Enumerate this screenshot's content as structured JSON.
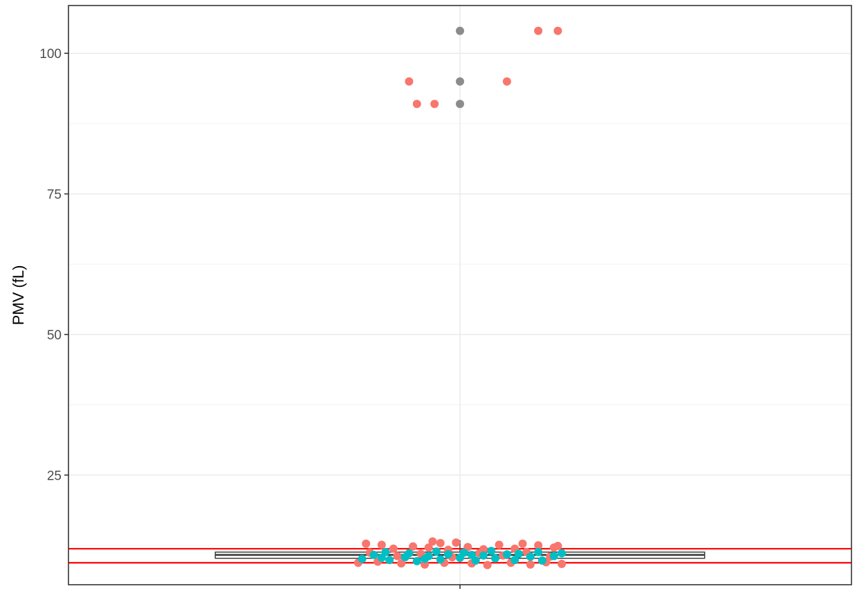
{
  "chart_data": {
    "type": "scatter",
    "title": "",
    "xlabel": "",
    "ylabel": "PMV (fL)",
    "ylim": [
      5.5,
      108.5
    ],
    "y_ticks": [
      25,
      50,
      75,
      100
    ],
    "y_tick_labels": [
      "25",
      "50",
      "75",
      "100"
    ],
    "grid": true,
    "legend": "none",
    "reference_lines": [
      {
        "y": 9.4,
        "color": "#ff0000"
      },
      {
        "y": 11.9,
        "color": "#ff0000"
      }
    ],
    "boxplot": {
      "min": 9.4,
      "q1": 10.2,
      "median": 10.8,
      "q3": 11.3,
      "max": 13.4,
      "outliers": [
        91,
        95,
        104
      ]
    },
    "series": [
      {
        "color": "#f8766d",
        "points": [
          {
            "x": -0.13,
            "y": 95
          },
          {
            "x": -0.11,
            "y": 91
          },
          {
            "x": -0.065,
            "y": 91
          },
          {
            "x": 0.12,
            "y": 95
          },
          {
            "x": 0.2,
            "y": 104
          },
          {
            "x": 0.25,
            "y": 104
          },
          {
            "x": -0.24,
            "y": 12.8
          },
          {
            "x": -0.2,
            "y": 12.6
          },
          {
            "x": -0.17,
            "y": 11.9
          },
          {
            "x": -0.12,
            "y": 12.3
          },
          {
            "x": -0.08,
            "y": 12.1
          },
          {
            "x": -0.05,
            "y": 12.9
          },
          {
            "x": -0.03,
            "y": 11.7
          },
          {
            "x": 0.02,
            "y": 12.2
          },
          {
            "x": 0.06,
            "y": 11.8
          },
          {
            "x": 0.1,
            "y": 12.6
          },
          {
            "x": 0.14,
            "y": 11.9
          },
          {
            "x": 0.2,
            "y": 12.5
          },
          {
            "x": 0.24,
            "y": 12.1
          },
          {
            "x": -0.26,
            "y": 9.4
          },
          {
            "x": -0.21,
            "y": 9.6
          },
          {
            "x": -0.15,
            "y": 9.3
          },
          {
            "x": -0.09,
            "y": 9.1
          },
          {
            "x": -0.04,
            "y": 9.4
          },
          {
            "x": 0.03,
            "y": 9.3
          },
          {
            "x": 0.07,
            "y": 9.0
          },
          {
            "x": 0.13,
            "y": 9.4
          },
          {
            "x": 0.18,
            "y": 9.1
          },
          {
            "x": 0.22,
            "y": 9.5
          },
          {
            "x": 0.26,
            "y": 9.2
          },
          {
            "x": -0.23,
            "y": 11.2
          },
          {
            "x": -0.16,
            "y": 10.6
          },
          {
            "x": -0.1,
            "y": 11.0
          },
          {
            "x": -0.02,
            "y": 10.4
          },
          {
            "x": 0.05,
            "y": 11.1
          },
          {
            "x": 0.11,
            "y": 10.7
          },
          {
            "x": 0.17,
            "y": 11.3
          },
          {
            "x": 0.23,
            "y": 10.5
          },
          {
            "x": -0.07,
            "y": 13.2
          },
          {
            "x": -0.01,
            "y": 13.0
          },
          {
            "x": 0.16,
            "y": 12.8
          },
          {
            "x": 0.25,
            "y": 12.4
          }
        ]
      },
      {
        "color": "#00bfc4",
        "points": [
          {
            "x": -0.25,
            "y": 10.1
          },
          {
            "x": -0.22,
            "y": 10.8
          },
          {
            "x": -0.19,
            "y": 11.3
          },
          {
            "x": -0.18,
            "y": 9.9
          },
          {
            "x": -0.14,
            "y": 10.4
          },
          {
            "x": -0.13,
            "y": 11.1
          },
          {
            "x": -0.11,
            "y": 9.7
          },
          {
            "x": -0.08,
            "y": 10.6
          },
          {
            "x": -0.06,
            "y": 11.4
          },
          {
            "x": -0.05,
            "y": 10.0
          },
          {
            "x": -0.03,
            "y": 10.9
          },
          {
            "x": 0.0,
            "y": 10.3
          },
          {
            "x": 0.01,
            "y": 11.2
          },
          {
            "x": 0.04,
            "y": 9.8
          },
          {
            "x": 0.06,
            "y": 10.7
          },
          {
            "x": 0.08,
            "y": 11.5
          },
          {
            "x": 0.09,
            "y": 10.2
          },
          {
            "x": 0.12,
            "y": 10.9
          },
          {
            "x": 0.14,
            "y": 9.9
          },
          {
            "x": 0.15,
            "y": 11.0
          },
          {
            "x": 0.18,
            "y": 10.5
          },
          {
            "x": 0.2,
            "y": 11.3
          },
          {
            "x": 0.21,
            "y": 9.8
          },
          {
            "x": 0.24,
            "y": 10.6
          },
          {
            "x": 0.26,
            "y": 11.1
          },
          {
            "x": -0.2,
            "y": 10.3
          },
          {
            "x": -0.09,
            "y": 10.1
          },
          {
            "x": 0.03,
            "y": 10.8
          }
        ]
      },
      {
        "color": "#8c8c8c",
        "points": [
          {
            "x": 0.0,
            "y": 104
          },
          {
            "x": 0.0,
            "y": 95
          },
          {
            "x": 0.0,
            "y": 91
          }
        ]
      }
    ],
    "colors": {
      "outline": "#333333",
      "grid_major": "#ebebeb",
      "grid_minor": "#f3f3f3",
      "reference": "#ff0000"
    }
  }
}
